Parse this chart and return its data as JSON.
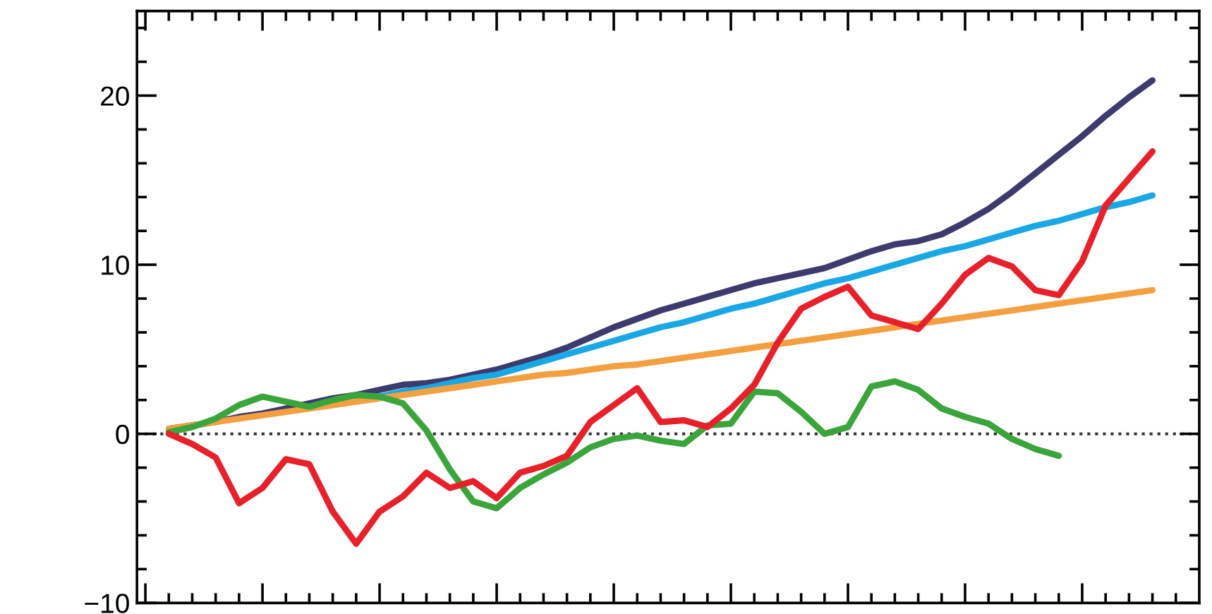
{
  "chart_data": {
    "type": "line",
    "categories": [
      null,
      null,
      null,
      null,
      null,
      null,
      null,
      null,
      null,
      null,
      null,
      null,
      null,
      null,
      null,
      null,
      null,
      null,
      null,
      null,
      null,
      null,
      null,
      null,
      null,
      null,
      null,
      null,
      null,
      null,
      null,
      null,
      null,
      null,
      null,
      null,
      null,
      null,
      null,
      null,
      null,
      null,
      null
    ],
    "series": [
      {
        "color": "#3d3a6e",
        "values": [
          0.3,
          0.5,
          0.7,
          1.0,
          1.2,
          1.5,
          1.8,
          2.1,
          2.3,
          2.6,
          2.9,
          3.0,
          3.2,
          3.5,
          3.8,
          4.2,
          4.6,
          5.1,
          5.7,
          6.3,
          6.8,
          7.3,
          7.7,
          8.1,
          8.5,
          8.9,
          9.2,
          9.5,
          9.8,
          10.3,
          10.8,
          11.2,
          11.4,
          11.8,
          12.5,
          13.3,
          14.3,
          15.4,
          16.5,
          17.6,
          18.8,
          19.9,
          20.9
        ]
      },
      {
        "color": "#1aa7e6",
        "values": [
          null,
          null,
          null,
          null,
          null,
          null,
          null,
          null,
          2.0,
          2.2,
          2.5,
          2.7,
          3.0,
          3.3,
          3.5,
          3.9,
          4.3,
          4.7,
          5.1,
          5.5,
          5.9,
          6.3,
          6.6,
          7.0,
          7.4,
          7.7,
          8.1,
          8.5,
          8.9,
          9.2,
          9.6,
          10.0,
          10.4,
          10.8,
          11.1,
          11.5,
          11.9,
          12.3,
          12.6,
          13.0,
          13.4,
          13.7,
          14.1
        ]
      },
      {
        "color": "#f4a040",
        "values": [
          0.3,
          0.5,
          0.7,
          0.9,
          1.1,
          1.3,
          1.5,
          1.7,
          1.9,
          2.1,
          2.3,
          2.5,
          2.7,
          2.9,
          3.1,
          3.3,
          3.5,
          3.6,
          3.8,
          4.0,
          4.1,
          4.3,
          4.5,
          4.7,
          4.9,
          5.1,
          5.3,
          5.5,
          5.7,
          5.9,
          6.1,
          6.3,
          6.5,
          6.7,
          6.9,
          7.1,
          7.3,
          7.5,
          7.7,
          7.9,
          8.1,
          8.3,
          8.5
        ]
      },
      {
        "color": "#3aa53a",
        "values": [
          0.1,
          0.4,
          0.9,
          1.7,
          2.2,
          1.9,
          1.6,
          2.0,
          2.3,
          2.2,
          1.8,
          0.2,
          -2.1,
          -4.0,
          -4.4,
          -3.2,
          -2.4,
          -1.7,
          -0.8,
          -0.3,
          -0.1,
          -0.4,
          -0.6,
          0.5,
          0.6,
          2.5,
          2.4,
          1.3,
          0.0,
          0.4,
          2.8,
          3.1,
          2.6,
          1.5,
          1.0,
          0.6,
          -0.3,
          -0.9,
          -1.3,
          null,
          null,
          null,
          null
        ]
      },
      {
        "color": "#e8202a",
        "values": [
          0.0,
          -0.6,
          -1.4,
          -4.1,
          -3.2,
          -1.5,
          -1.8,
          -4.6,
          -6.5,
          -4.6,
          -3.7,
          -2.3,
          -3.2,
          -2.8,
          -3.8,
          -2.3,
          -1.9,
          -1.3,
          0.7,
          1.7,
          2.7,
          0.7,
          0.8,
          0.4,
          1.5,
          2.9,
          5.4,
          7.4,
          8.1,
          8.7,
          7.0,
          6.6,
          6.2,
          7.7,
          9.4,
          10.4,
          9.9,
          8.5,
          8.2,
          10.2,
          13.5,
          15.1,
          16.7
        ]
      }
    ],
    "ylim": [
      -10,
      25
    ],
    "yticks": [
      {
        "value": -10,
        "label": "−10"
      },
      {
        "value": -8,
        "label": null
      },
      {
        "value": -6,
        "label": null
      },
      {
        "value": -4,
        "label": null
      },
      {
        "value": -2,
        "label": null
      },
      0,
      {
        "value": 2,
        "label": null
      },
      {
        "value": 4,
        "label": null
      },
      {
        "value": 6,
        "label": null
      },
      {
        "value": 8,
        "label": null
      },
      10,
      {
        "value": 12,
        "label": null
      },
      {
        "value": 14,
        "label": null
      },
      {
        "value": 16,
        "label": null
      },
      {
        "value": 18,
        "label": null
      },
      20,
      {
        "value": 22,
        "label": null
      },
      {
        "value": 24,
        "label": null
      }
    ],
    "ref_lines": [
      {
        "axis": "y",
        "value": 0,
        "color": "#333333",
        "line_style": "dotted"
      }
    ],
    "tick_labels": "y",
    "grid": false,
    "legend": false,
    "marker": "none",
    "line_style": "solid"
  }
}
